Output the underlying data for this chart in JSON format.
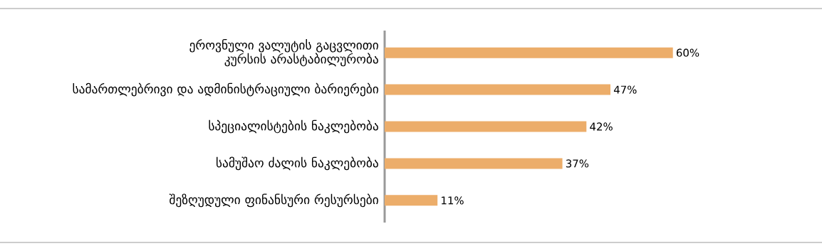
{
  "chart_data": {
    "type": "bar",
    "orientation": "horizontal",
    "categories": [
      "ეროვნული ვალუტის გაცვლითი კურსის არასტაბილურობა",
      "სამართლებრივი და ადმინისტრაციული ბარიერები",
      "სპეციალისტების ნაკლებობა",
      "სამუშაო ძალის ნაკლებობა",
      "შეზღუდული ფინანსური რესურსები"
    ],
    "values": [
      60,
      47,
      42,
      37,
      11
    ],
    "value_labels": [
      "60%",
      "47%",
      "42%",
      "37%",
      "11%"
    ],
    "color": "#ecad6a"
  }
}
